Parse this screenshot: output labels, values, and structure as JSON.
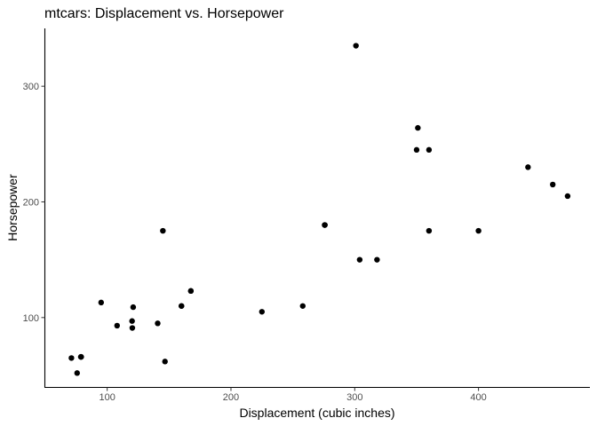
{
  "chart_data": {
    "type": "scatter",
    "title": "mtcars: Displacement vs. Horsepower",
    "xlabel": "Displacement (cubic inches)",
    "ylabel": "Horsepower",
    "xlim": [
      50,
      490
    ],
    "ylim": [
      40,
      350
    ],
    "x_ticks": [
      100,
      200,
      300,
      400
    ],
    "y_ticks": [
      100,
      200,
      300
    ],
    "grid": false,
    "point_color": "#000000",
    "points": [
      {
        "x": 160,
        "y": 110
      },
      {
        "x": 160,
        "y": 110
      },
      {
        "x": 108,
        "y": 93
      },
      {
        "x": 258,
        "y": 110
      },
      {
        "x": 360,
        "y": 175
      },
      {
        "x": 225,
        "y": 105
      },
      {
        "x": 360,
        "y": 245
      },
      {
        "x": 146.7,
        "y": 62
      },
      {
        "x": 140.8,
        "y": 95
      },
      {
        "x": 167.6,
        "y": 123
      },
      {
        "x": 167.6,
        "y": 123
      },
      {
        "x": 275.8,
        "y": 180
      },
      {
        "x": 275.8,
        "y": 180
      },
      {
        "x": 275.8,
        "y": 180
      },
      {
        "x": 472,
        "y": 205
      },
      {
        "x": 460,
        "y": 215
      },
      {
        "x": 440,
        "y": 230
      },
      {
        "x": 78.7,
        "y": 66
      },
      {
        "x": 75.7,
        "y": 52
      },
      {
        "x": 71.1,
        "y": 65
      },
      {
        "x": 120.1,
        "y": 97
      },
      {
        "x": 318,
        "y": 150
      },
      {
        "x": 304,
        "y": 150
      },
      {
        "x": 350,
        "y": 245
      },
      {
        "x": 400,
        "y": 175
      },
      {
        "x": 79,
        "y": 66
      },
      {
        "x": 120.3,
        "y": 91
      },
      {
        "x": 95.1,
        "y": 113
      },
      {
        "x": 351,
        "y": 264
      },
      {
        "x": 145,
        "y": 175
      },
      {
        "x": 301,
        "y": 335
      },
      {
        "x": 121,
        "y": 109
      }
    ]
  }
}
